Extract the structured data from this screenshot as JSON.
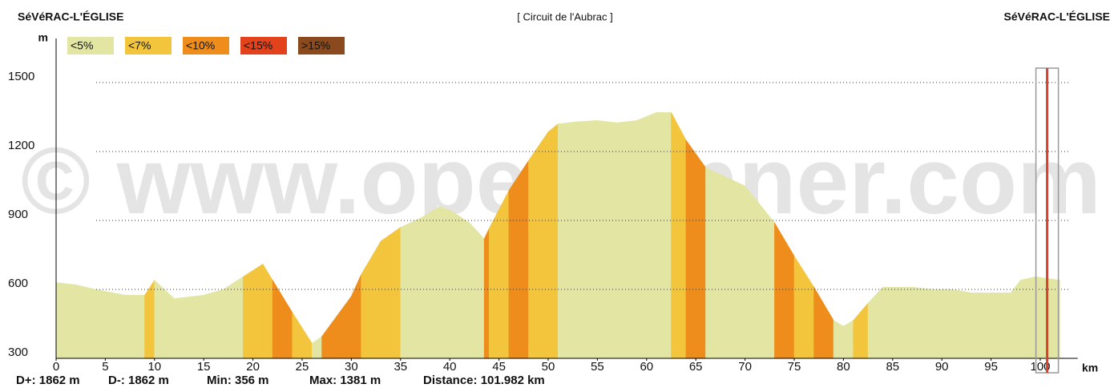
{
  "chart_data": {
    "type": "elevation-profile",
    "title": "[ Circuit de l'Aubrac ]",
    "start_label": "SéVéRAC-L'ÉGLISE",
    "end_label": "SéVéRAC-L'ÉGLISE",
    "watermark": "© www.openrunner.com",
    "ylabel": "m",
    "xlabel": "km",
    "legend": [
      {
        "label": "<5%",
        "color": "#e2e6a2"
      },
      {
        "label": "<7%",
        "color": "#f2c53d"
      },
      {
        "label": "<10%",
        "color": "#ee8d1b"
      },
      {
        "label": "<15%",
        "color": "#e2431c"
      },
      {
        "label": ">15%",
        "color": "#8b4a1e"
      }
    ],
    "stats": [
      "D+: 1862 m",
      "D-: 1862 m",
      "Min: 356 m",
      "Max: 1381 m",
      "Distance: 101.982 km"
    ],
    "x": [
      0,
      2,
      4,
      7,
      9,
      10,
      12,
      15,
      17,
      19,
      21,
      22,
      24,
      26,
      27,
      30,
      31,
      33,
      35,
      37,
      39,
      40,
      42,
      43.5,
      44,
      46,
      48,
      50,
      51,
      53,
      55,
      57,
      59,
      61,
      62.5,
      64,
      66,
      70,
      73,
      75,
      77,
      79,
      80,
      81,
      82.5,
      84,
      87,
      89,
      91,
      93,
      95,
      97,
      98,
      99.5,
      101.982
    ],
    "values": [
      630,
      620,
      600,
      575,
      575,
      640,
      560,
      575,
      600,
      655,
      710,
      640,
      500,
      365,
      395,
      570,
      665,
      810,
      870,
      910,
      960,
      945,
      890,
      820,
      865,
      1030,
      1160,
      1285,
      1320,
      1330,
      1335,
      1325,
      1335,
      1370,
      1370,
      1250,
      1130,
      1050,
      890,
      745,
      610,
      465,
      440,
      465,
      540,
      610,
      610,
      600,
      600,
      585,
      585,
      585,
      640,
      655,
      640
    ],
    "segment_colors": [
      "#e2e6a2",
      "#e2e6a2",
      "#e2e6a2",
      "#e2e6a2",
      "#f2c53d",
      "#e2e6a2",
      "#e2e6a2",
      "#e2e6a2",
      "#e2e6a2",
      "#f2c53d",
      "#f2c53d",
      "#ee8d1b",
      "#f2c53d",
      "#e2e6a2",
      "#ee8d1b",
      "#ee8d1b",
      "#f2c53d",
      "#f2c53d",
      "#e2e6a2",
      "#e2e6a2",
      "#e2e6a2",
      "#e2e6a2",
      "#e2e6a2",
      "#ee8d1b",
      "#f2c53d",
      "#ee8d1b",
      "#f2c53d",
      "#f2c53d",
      "#e2e6a2",
      "#e2e6a2",
      "#e2e6a2",
      "#e2e6a2",
      "#e2e6a2",
      "#e2e6a2",
      "#f2c53d",
      "#ee8d1b",
      "#e2e6a2",
      "#e2e6a2",
      "#ee8d1b",
      "#f2c53d",
      "#ee8d1b",
      "#e2e6a2",
      "#e2e6a2",
      "#f2c53d",
      "#e2e6a2",
      "#e2e6a2",
      "#e2e6a2",
      "#e2e6a2",
      "#e2e6a2",
      "#e2e6a2",
      "#e2e6a2",
      "#e2e6a2",
      "#e2e6a2",
      "#e2e6a2"
    ],
    "marker_x": 100.7,
    "marker_color": "#d9412a",
    "xlim": [
      0,
      103.8
    ],
    "ylim": [
      300,
      1650
    ],
    "xticks": [
      0,
      5,
      10,
      15,
      20,
      25,
      30,
      35,
      40,
      45,
      50,
      55,
      60,
      65,
      70,
      75,
      80,
      85,
      90,
      95,
      100
    ],
    "yticks": [
      300,
      600,
      900,
      1200,
      1500
    ],
    "grid": true
  }
}
